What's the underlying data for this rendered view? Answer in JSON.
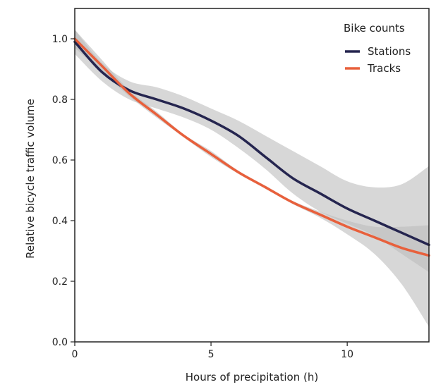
{
  "chart_data": {
    "type": "line",
    "title": "",
    "xlabel": "Hours of precipitation (h)",
    "ylabel": "Relative bicycle traffic volume",
    "xlim": [
      0,
      13
    ],
    "ylim": [
      0,
      1.1
    ],
    "xticks": [
      0,
      5,
      10
    ],
    "xtick_labels": [
      "0",
      "5",
      "10"
    ],
    "yticks": [
      0.0,
      0.2,
      0.4,
      0.6,
      0.8,
      1.0
    ],
    "ytick_labels": [
      "0.0",
      "0.2",
      "0.4",
      "0.6",
      "0.8",
      "1.0"
    ],
    "grid": false,
    "legend_title": "Bike counts",
    "legend_position": "top-right",
    "confidence_band_color": "#bdbdbd",
    "series": [
      {
        "name": "Stations",
        "color": "#25254f",
        "x": [
          0,
          1,
          2,
          3,
          4,
          5,
          6,
          7,
          8,
          9,
          10,
          11,
          12,
          13
        ],
        "y": [
          0.99,
          0.89,
          0.83,
          0.8,
          0.77,
          0.73,
          0.68,
          0.61,
          0.54,
          0.49,
          0.44,
          0.4,
          0.36,
          0.32
        ],
        "ci_lower": [
          0.95,
          0.86,
          0.8,
          0.77,
          0.74,
          0.7,
          0.64,
          0.57,
          0.49,
          0.43,
          0.39,
          0.35,
          0.29,
          0.23
        ],
        "ci_upper": [
          1.03,
          0.92,
          0.86,
          0.84,
          0.81,
          0.77,
          0.73,
          0.68,
          0.63,
          0.58,
          0.53,
          0.51,
          0.52,
          0.58
        ]
      },
      {
        "name": "Tracks",
        "color": "#e8603c",
        "x": [
          0,
          1,
          2,
          3,
          4,
          5,
          6,
          7,
          8,
          9,
          10,
          11,
          12,
          13
        ],
        "y": [
          1.0,
          0.91,
          0.82,
          0.75,
          0.68,
          0.62,
          0.56,
          0.51,
          0.46,
          0.42,
          0.38,
          0.345,
          0.31,
          0.285
        ],
        "ci_lower": [
          0.97,
          0.89,
          0.81,
          0.74,
          0.675,
          0.61,
          0.555,
          0.505,
          0.455,
          0.41,
          0.355,
          0.29,
          0.19,
          0.05
        ],
        "ci_upper": [
          1.03,
          0.93,
          0.83,
          0.76,
          0.685,
          0.63,
          0.565,
          0.515,
          0.465,
          0.43,
          0.4,
          0.38,
          0.38,
          0.385
        ]
      }
    ]
  }
}
